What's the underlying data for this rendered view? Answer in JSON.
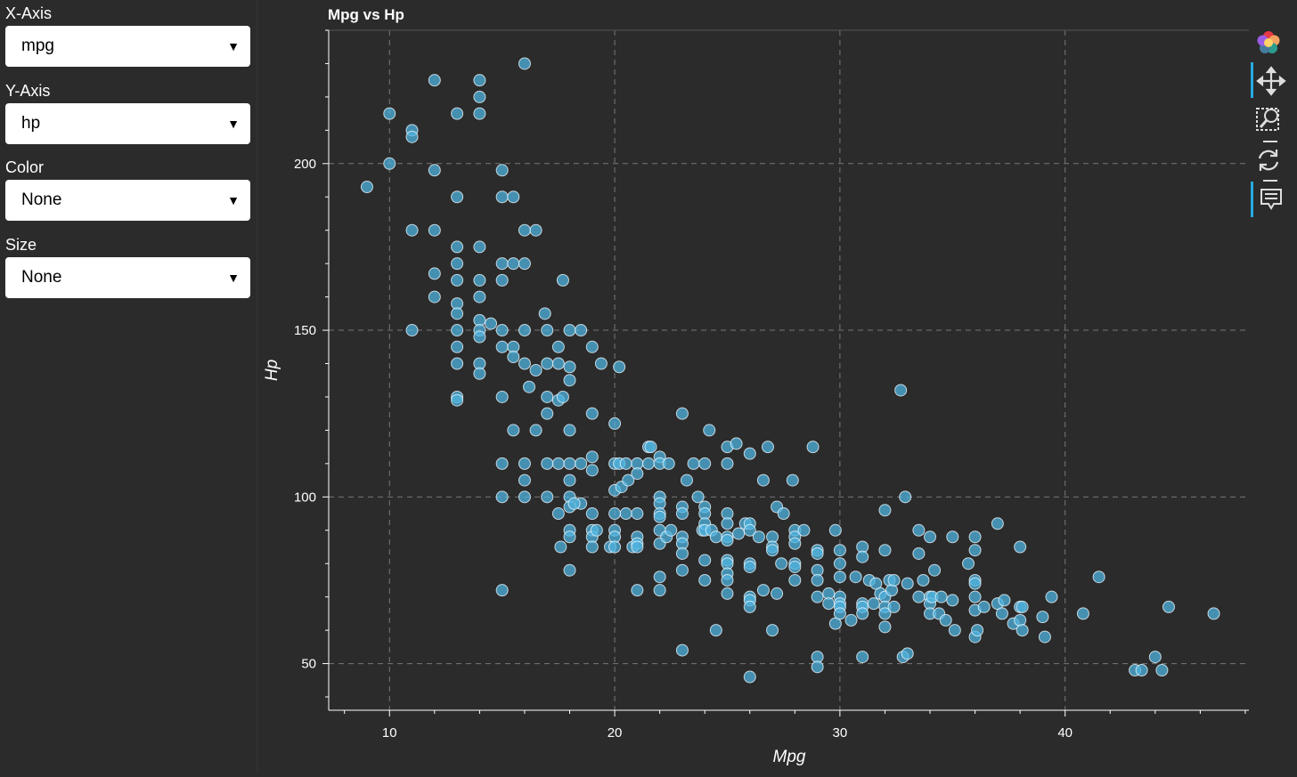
{
  "sidebar": {
    "x_axis": {
      "label": "X-Axis",
      "value": "mpg"
    },
    "y_axis": {
      "label": "Y-Axis",
      "value": "hp"
    },
    "color": {
      "label": "Color",
      "value": "None"
    },
    "size": {
      "label": "Size",
      "value": "None"
    }
  },
  "toolbar": {
    "items": [
      "bokeh-logo-icon",
      "pan-tool-icon",
      "box-zoom-tool-icon",
      "reset-tool-icon",
      "hover-tool-icon"
    ]
  },
  "colors": {
    "background": "#2b2b2b",
    "point_fill": "#4fb3df",
    "point_stroke": "#e8f4fa",
    "accent": "#26aae1"
  },
  "chart_data": {
    "type": "scatter",
    "title": "Mpg vs Hp",
    "xlabel": "Mpg",
    "ylabel": "Hp",
    "xlim": [
      7.3,
      48.2
    ],
    "ylim": [
      36,
      240
    ],
    "xticks": [
      10,
      20,
      30,
      40
    ],
    "yticks": [
      50,
      100,
      150,
      200
    ],
    "grid": true,
    "points": [
      [
        9,
        193
      ],
      [
        10,
        215
      ],
      [
        10,
        200
      ],
      [
        11,
        210
      ],
      [
        11,
        208
      ],
      [
        11,
        180
      ],
      [
        11,
        150
      ],
      [
        12,
        225
      ],
      [
        12,
        198
      ],
      [
        12,
        180
      ],
      [
        12,
        167
      ],
      [
        12,
        160
      ],
      [
        13,
        215
      ],
      [
        13,
        190
      ],
      [
        13,
        175
      ],
      [
        13,
        170
      ],
      [
        13,
        165
      ],
      [
        13,
        158
      ],
      [
        13,
        155
      ],
      [
        13,
        150
      ],
      [
        13,
        145
      ],
      [
        13,
        140
      ],
      [
        13,
        130
      ],
      [
        13,
        129
      ],
      [
        14,
        225
      ],
      [
        14,
        220
      ],
      [
        14,
        215
      ],
      [
        14,
        175
      ],
      [
        14,
        165
      ],
      [
        14,
        160
      ],
      [
        14,
        153
      ],
      [
        14,
        150
      ],
      [
        14,
        148
      ],
      [
        14,
        140
      ],
      [
        14,
        137
      ],
      [
        14.5,
        152
      ],
      [
        15,
        198
      ],
      [
        15,
        190
      ],
      [
        15,
        170
      ],
      [
        15,
        165
      ],
      [
        15,
        150
      ],
      [
        15,
        145
      ],
      [
        15,
        130
      ],
      [
        15,
        110
      ],
      [
        15,
        100
      ],
      [
        15,
        72
      ],
      [
        15.5,
        190
      ],
      [
        15.5,
        170
      ],
      [
        15.5,
        145
      ],
      [
        15.5,
        142
      ],
      [
        15.5,
        120
      ],
      [
        16,
        230
      ],
      [
        16,
        180
      ],
      [
        16,
        170
      ],
      [
        16,
        150
      ],
      [
        16,
        140
      ],
      [
        16,
        110
      ],
      [
        16,
        105
      ],
      [
        16,
        100
      ],
      [
        16.5,
        180
      ],
      [
        16.5,
        138
      ],
      [
        16.2,
        133
      ],
      [
        16.5,
        120
      ],
      [
        16.9,
        155
      ],
      [
        17,
        150
      ],
      [
        17,
        140
      ],
      [
        17,
        130
      ],
      [
        17,
        125
      ],
      [
        17,
        110
      ],
      [
        17,
        100
      ],
      [
        17.5,
        145
      ],
      [
        17.5,
        140
      ],
      [
        17.5,
        129
      ],
      [
        17.5,
        110
      ],
      [
        17.5,
        95
      ],
      [
        17.6,
        85
      ],
      [
        17.7,
        165
      ],
      [
        17.7,
        130
      ],
      [
        18,
        150
      ],
      [
        18,
        139
      ],
      [
        18,
        135
      ],
      [
        18,
        120
      ],
      [
        18,
        110
      ],
      [
        18,
        105
      ],
      [
        18,
        100
      ],
      [
        18,
        97
      ],
      [
        18,
        90
      ],
      [
        18,
        88
      ],
      [
        18,
        78
      ],
      [
        18.5,
        150
      ],
      [
        18.5,
        110
      ],
      [
        18.5,
        98
      ],
      [
        18.2,
        98
      ],
      [
        19,
        145
      ],
      [
        19,
        125
      ],
      [
        19,
        112
      ],
      [
        19,
        108
      ],
      [
        19,
        95
      ],
      [
        19,
        90
      ],
      [
        19,
        88
      ],
      [
        19,
        85
      ],
      [
        19.4,
        140
      ],
      [
        19.2,
        90
      ],
      [
        19.8,
        85
      ],
      [
        20,
        122
      ],
      [
        20,
        110
      ],
      [
        20,
        102
      ],
      [
        20,
        95
      ],
      [
        20,
        90
      ],
      [
        20,
        88
      ],
      [
        20,
        85
      ],
      [
        20.2,
        139
      ],
      [
        20.2,
        110
      ],
      [
        20.3,
        103
      ],
      [
        20.5,
        95
      ],
      [
        20.5,
        110
      ],
      [
        20.6,
        105
      ],
      [
        20.8,
        85
      ],
      [
        21,
        110
      ],
      [
        21,
        107
      ],
      [
        21,
        95
      ],
      [
        21,
        88
      ],
      [
        21,
        86
      ],
      [
        21,
        85
      ],
      [
        21,
        72
      ],
      [
        21.5,
        110
      ],
      [
        21.5,
        115
      ],
      [
        21.6,
        115
      ],
      [
        22,
        112
      ],
      [
        22,
        110
      ],
      [
        22,
        100
      ],
      [
        22,
        98
      ],
      [
        22,
        95
      ],
      [
        22,
        94
      ],
      [
        22,
        90
      ],
      [
        22,
        86
      ],
      [
        22,
        76
      ],
      [
        22,
        72
      ],
      [
        22.3,
        88
      ],
      [
        22.4,
        110
      ],
      [
        22.5,
        90
      ],
      [
        23,
        125
      ],
      [
        23,
        97
      ],
      [
        23,
        95
      ],
      [
        23,
        88
      ],
      [
        23,
        86
      ],
      [
        23,
        83
      ],
      [
        23,
        78
      ],
      [
        23,
        54
      ],
      [
        23.2,
        105
      ],
      [
        23.5,
        110
      ],
      [
        23.7,
        100
      ],
      [
        23.9,
        90
      ],
      [
        24,
        110
      ],
      [
        24,
        97
      ],
      [
        24,
        95
      ],
      [
        24,
        92
      ],
      [
        24,
        90
      ],
      [
        24,
        81
      ],
      [
        24,
        75
      ],
      [
        24.2,
        120
      ],
      [
        24.3,
        90
      ],
      [
        24.5,
        88
      ],
      [
        24.5,
        60
      ],
      [
        25,
        115
      ],
      [
        25,
        110
      ],
      [
        25,
        95
      ],
      [
        25,
        92
      ],
      [
        25,
        88
      ],
      [
        25,
        87
      ],
      [
        25,
        81
      ],
      [
        25,
        80
      ],
      [
        25,
        77
      ],
      [
        25,
        75
      ],
      [
        25,
        71
      ],
      [
        25.4,
        116
      ],
      [
        25.5,
        89
      ],
      [
        25.8,
        92
      ],
      [
        26,
        113
      ],
      [
        26,
        92
      ],
      [
        26,
        90
      ],
      [
        26,
        80
      ],
      [
        26,
        79
      ],
      [
        26,
        70
      ],
      [
        26,
        69
      ],
      [
        26,
        67
      ],
      [
        26,
        46
      ],
      [
        26.4,
        88
      ],
      [
        26.6,
        105
      ],
      [
        26.6,
        72
      ],
      [
        26.8,
        115
      ],
      [
        27,
        88
      ],
      [
        27,
        85
      ],
      [
        27,
        84
      ],
      [
        27,
        60
      ],
      [
        27.2,
        97
      ],
      [
        27.2,
        71
      ],
      [
        27.4,
        80
      ],
      [
        27.5,
        95
      ],
      [
        27.9,
        105
      ],
      [
        28,
        90
      ],
      [
        28,
        88
      ],
      [
        28,
        86
      ],
      [
        28,
        80
      ],
      [
        28,
        79
      ],
      [
        28,
        75
      ],
      [
        28.4,
        90
      ],
      [
        28.8,
        115
      ],
      [
        29,
        84
      ],
      [
        29,
        83
      ],
      [
        29,
        78
      ],
      [
        29,
        75
      ],
      [
        29,
        70
      ],
      [
        29,
        52
      ],
      [
        29,
        49
      ],
      [
        29.5,
        71
      ],
      [
        29.5,
        68
      ],
      [
        29.8,
        90
      ],
      [
        29.8,
        62
      ],
      [
        30,
        84
      ],
      [
        30,
        80
      ],
      [
        30,
        76
      ],
      [
        30,
        70
      ],
      [
        30,
        68
      ],
      [
        30,
        67
      ],
      [
        30,
        65
      ],
      [
        30.5,
        63
      ],
      [
        30.7,
        76
      ],
      [
        31,
        85
      ],
      [
        31,
        82
      ],
      [
        31,
        68
      ],
      [
        31,
        67
      ],
      [
        31,
        65
      ],
      [
        31,
        52
      ],
      [
        31.3,
        75
      ],
      [
        31.5,
        68
      ],
      [
        31.6,
        74
      ],
      [
        31.8,
        71
      ],
      [
        32,
        84
      ],
      [
        32,
        70
      ],
      [
        32,
        67
      ],
      [
        32,
        65
      ],
      [
        32,
        61
      ],
      [
        32,
        96
      ],
      [
        32.2,
        75
      ],
      [
        32.3,
        72
      ],
      [
        32.4,
        67
      ],
      [
        32.4,
        75
      ],
      [
        32.7,
        132
      ],
      [
        32.8,
        52
      ],
      [
        32.9,
        100
      ],
      [
        33,
        53
      ],
      [
        33,
        74
      ],
      [
        33.5,
        83
      ],
      [
        33.5,
        90
      ],
      [
        33.5,
        70
      ],
      [
        33.7,
        75
      ],
      [
        34,
        88
      ],
      [
        34,
        70
      ],
      [
        34,
        68
      ],
      [
        34,
        65
      ],
      [
        34.1,
        70
      ],
      [
        34.2,
        78
      ],
      [
        34.4,
        65
      ],
      [
        34.5,
        70
      ],
      [
        34.7,
        63
      ],
      [
        35,
        88
      ],
      [
        35,
        69
      ],
      [
        35.1,
        60
      ],
      [
        35.7,
        80
      ],
      [
        36,
        88
      ],
      [
        36,
        84
      ],
      [
        36,
        75
      ],
      [
        36,
        74
      ],
      [
        36,
        70
      ],
      [
        36,
        66
      ],
      [
        36,
        58
      ],
      [
        36.1,
        60
      ],
      [
        36.4,
        67
      ],
      [
        37,
        92
      ],
      [
        37,
        68
      ],
      [
        37.2,
        65
      ],
      [
        37.3,
        69
      ],
      [
        37.7,
        62
      ],
      [
        38,
        85
      ],
      [
        38,
        67
      ],
      [
        38,
        63
      ],
      [
        38.1,
        60
      ],
      [
        38.1,
        67
      ],
      [
        39,
        64
      ],
      [
        39.1,
        58
      ],
      [
        39.4,
        70
      ],
      [
        40.8,
        65
      ],
      [
        41.5,
        76
      ],
      [
        43.1,
        48
      ],
      [
        43.4,
        48
      ],
      [
        44,
        52
      ],
      [
        44.3,
        48
      ],
      [
        44.6,
        67
      ],
      [
        46.6,
        65
      ]
    ]
  }
}
